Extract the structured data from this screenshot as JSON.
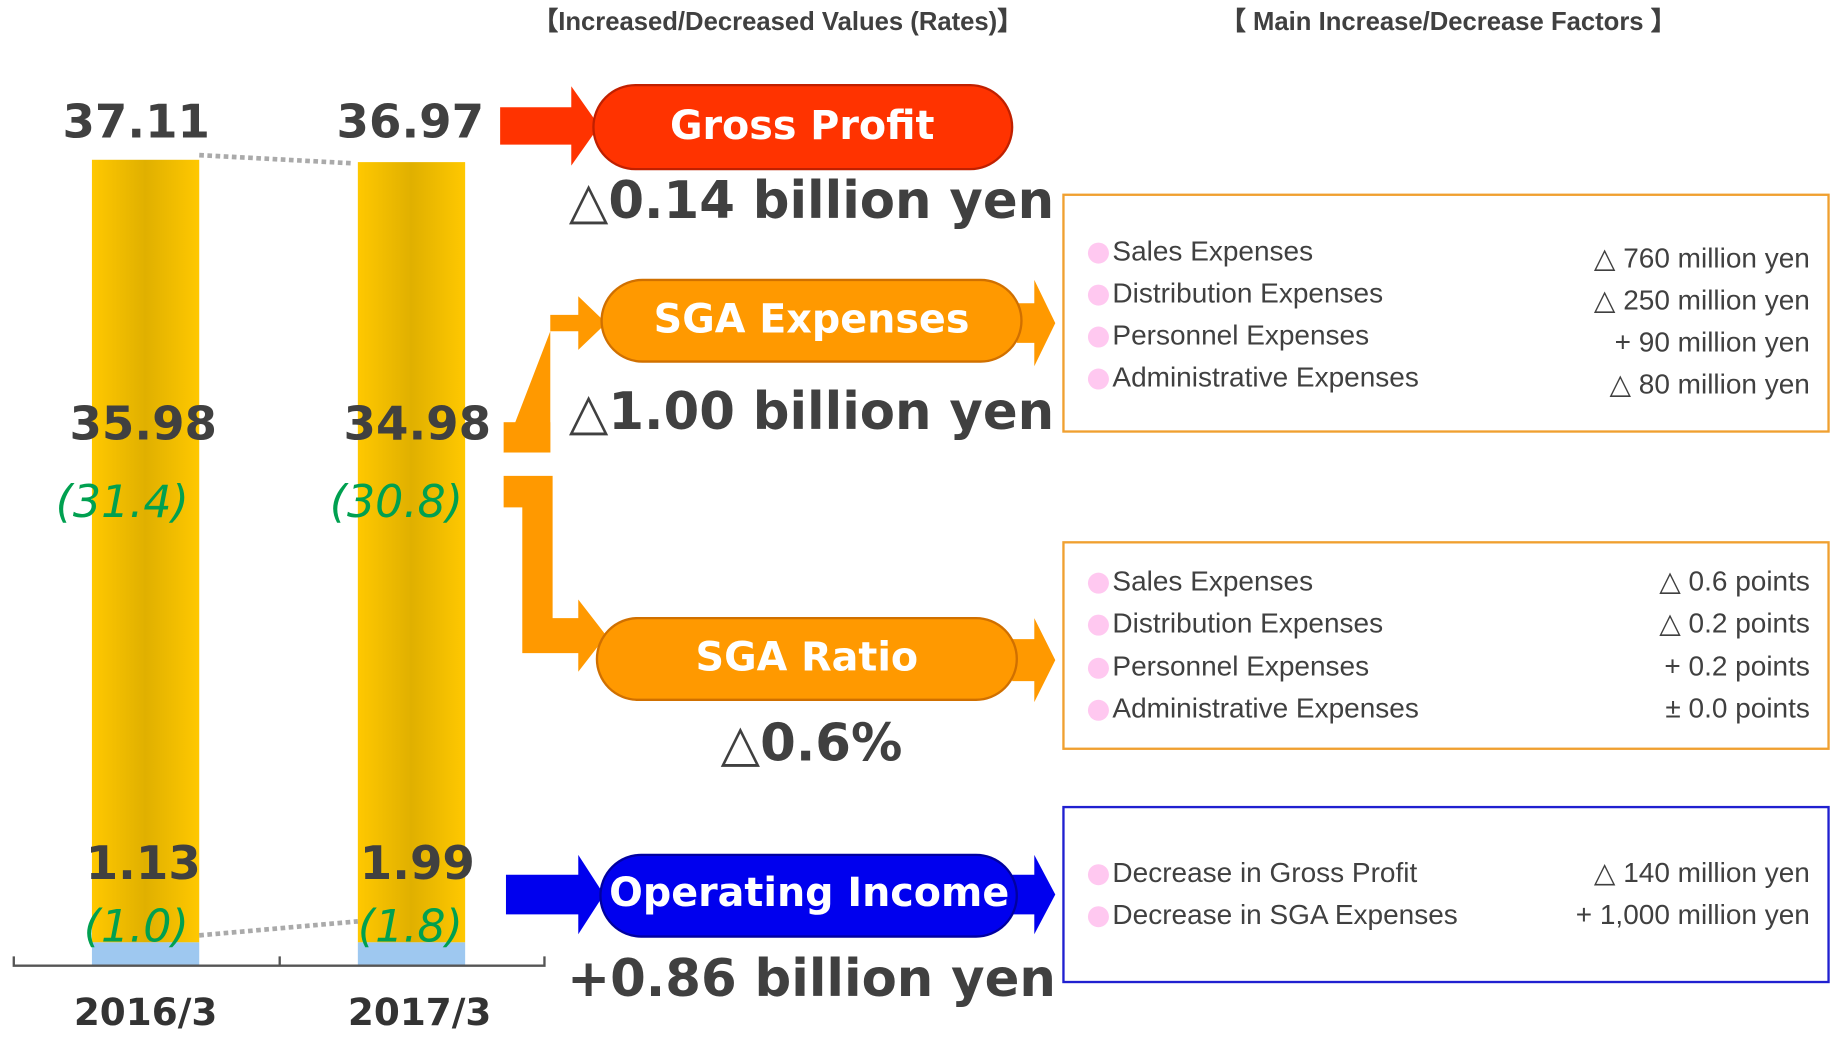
{
  "headers": {
    "left": "【Increased/Decreased Values (Rates)】",
    "right": "【 Main Increase/Decrease Factors 】"
  },
  "bars": [
    {
      "period": "2016/3",
      "gross_profit": "37.11",
      "sga_expenses": "35.98",
      "sga_ratio": "(31.4)",
      "operating_income": "1.13",
      "operating_ratio": "(1.0)"
    },
    {
      "period": "2017/3",
      "gross_profit": "36.97",
      "sga_expenses": "34.98",
      "sga_ratio": "(30.8)",
      "operating_income": "1.99",
      "operating_ratio": "(1.8)"
    }
  ],
  "items": [
    {
      "label": "Gross Profit",
      "value": "△0.14 billion yen"
    },
    {
      "label": "SGA Expenses",
      "value": "△1.00 billion yen"
    },
    {
      "label": "SGA Ratio",
      "value": "△0.6%"
    },
    {
      "label": "Operating Income",
      "value": "+0.86 billion yen"
    }
  ],
  "factor_boxes": [
    {
      "rows": [
        {
          "name": "Sales Expenses",
          "amount": "△ 760 million yen"
        },
        {
          "name": "Distribution Expenses",
          "amount": "△ 250 million yen"
        },
        {
          "name": "Personnel Expenses",
          "amount": "+ 90 million yen"
        },
        {
          "name": "Administrative Expenses",
          "amount": "△ 80 million yen"
        }
      ]
    },
    {
      "rows": [
        {
          "name": "Sales Expenses",
          "amount": "△ 0.6 points"
        },
        {
          "name": "Distribution Expenses",
          "amount": "△ 0.2 points"
        },
        {
          "name": "Personnel Expenses",
          "amount": "+ 0.2 points"
        },
        {
          "name": "Administrative Expenses",
          "amount": "± 0.0 points"
        }
      ]
    },
    {
      "rows": [
        {
          "name": "Decrease in Gross Profit",
          "amount": "△ 140 million yen"
        },
        {
          "name": "Decrease in SGA Expenses",
          "amount": "+ 1,000 million yen"
        }
      ]
    }
  ]
}
